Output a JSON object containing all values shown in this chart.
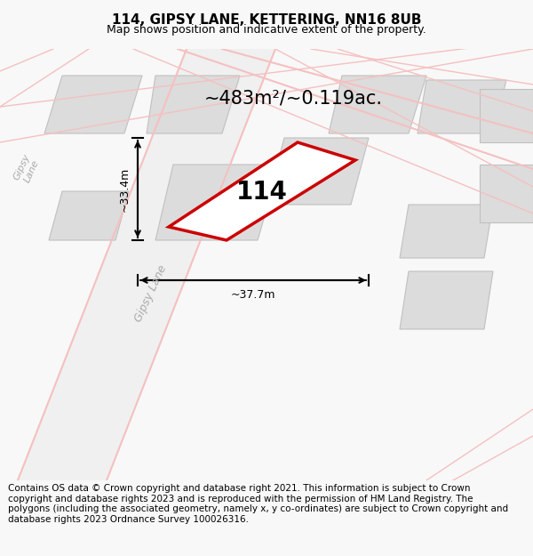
{
  "title": "114, GIPSY LANE, KETTERING, NN16 8UB",
  "subtitle": "Map shows position and indicative extent of the property.",
  "area_text": "~483m²/~0.119ac.",
  "width_text": "~37.7m",
  "height_text": "~33.4m",
  "number_label": "114",
  "street_label": "Gipsy Lane",
  "street_label2": "Gipsy Lane",
  "footer_text": "Contains OS data © Crown copyright and database right 2021. This information is subject to Crown copyright and database rights 2023 and is reproduced with the permission of HM Land Registry. The polygons (including the associated geometry, namely x, y co-ordinates) are subject to Crown copyright and database rights 2023 Ordnance Survey 100026316.",
  "bg_color": "#f8f8f8",
  "map_bg": "#ffffff",
  "plot_color_fill": "white",
  "plot_color_edge": "#cc0000",
  "road_color": "#f5c0c0",
  "building_color": "#dcdcdc",
  "building_edge": "#c0c0c0",
  "title_fontsize": 11,
  "subtitle_fontsize": 9,
  "footer_fontsize": 7.5
}
